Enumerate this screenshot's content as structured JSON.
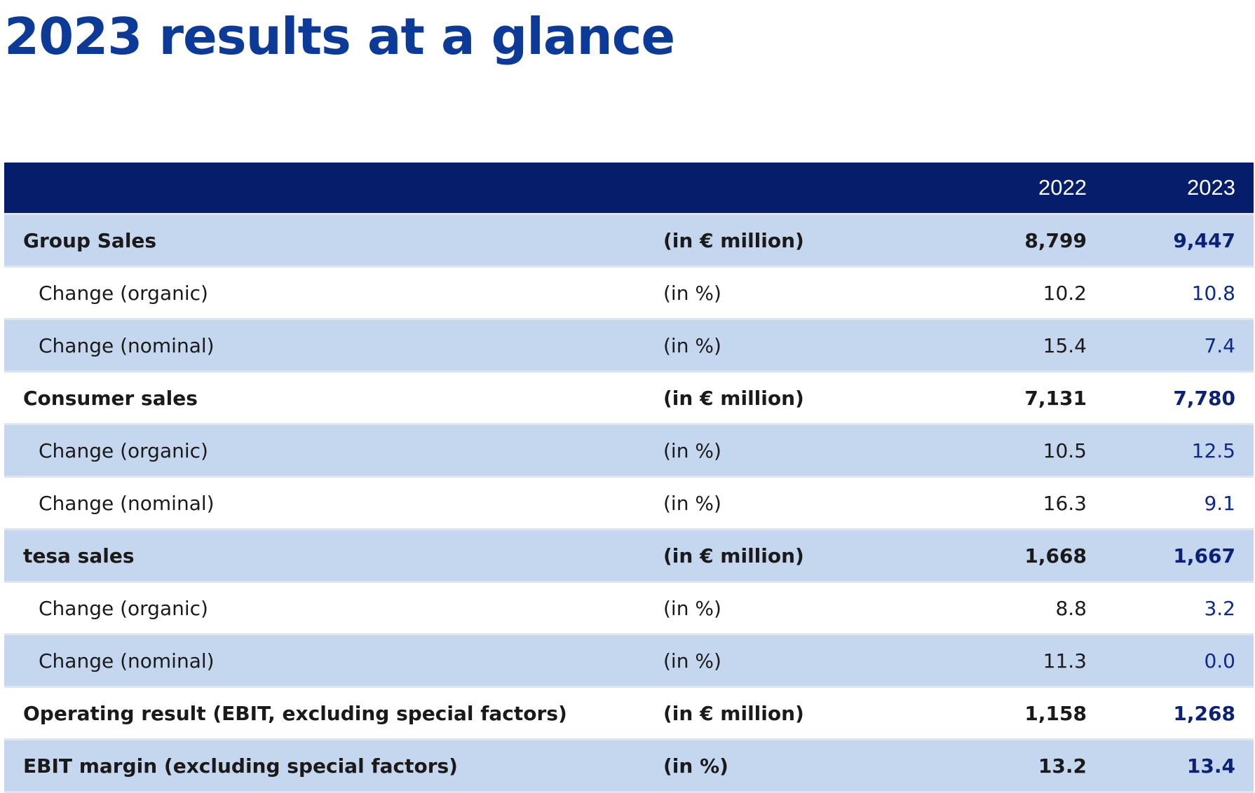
{
  "title": "2023 results at a glance",
  "table": {
    "columns": [
      "",
      "",
      "2022",
      "2023"
    ],
    "rows": [
      {
        "label": "Group Sales",
        "unit": "(in € million)",
        "y2022": "8,799",
        "y2023": "9,447",
        "bold": true,
        "shaded": true
      },
      {
        "label": "Change (organic)",
        "unit": "(in %)",
        "y2022": "10.2",
        "y2023": "10.8",
        "bold": false,
        "shaded": false
      },
      {
        "label": "Change (nominal)",
        "unit": "(in %)",
        "y2022": "15.4",
        "y2023": "7.4",
        "bold": false,
        "shaded": true
      },
      {
        "label": "Consumer sales",
        "unit": "(in € million)",
        "y2022": "7,131",
        "y2023": "7,780",
        "bold": true,
        "shaded": false
      },
      {
        "label": "Change (organic)",
        "unit": "(in %)",
        "y2022": "10.5",
        "y2023": "12.5",
        "bold": false,
        "shaded": true
      },
      {
        "label": "Change (nominal)",
        "unit": "(in %)",
        "y2022": "16.3",
        "y2023": "9.1",
        "bold": false,
        "shaded": false
      },
      {
        "label": "tesa sales",
        "unit": "(in € million)",
        "y2022": "1,668",
        "y2023": "1,667",
        "bold": true,
        "shaded": true
      },
      {
        "label": "Change (organic)",
        "unit": "(in %)",
        "y2022": "8.8",
        "y2023": "3.2",
        "bold": false,
        "shaded": false
      },
      {
        "label": "Change (nominal)",
        "unit": "(in %)",
        "y2022": "11.3",
        "y2023": "0.0",
        "bold": false,
        "shaded": true
      },
      {
        "label": "Operating result (EBIT, excluding special factors)",
        "unit": "(in € million)",
        "y2022": "1,158",
        "y2023": "1,268",
        "bold": true,
        "shaded": false
      },
      {
        "label": "EBIT margin (excluding special factors)",
        "unit": "(in %)",
        "y2022": "13.2",
        "y2023": "13.4",
        "bold": true,
        "shaded": true
      }
    ]
  },
  "colors": {
    "title": "#0b3a99",
    "header_bg": "#061d6b",
    "row_shaded": "#c5d6ef",
    "row_plain": "#ffffff",
    "value_2023": "#0b2a8c"
  }
}
